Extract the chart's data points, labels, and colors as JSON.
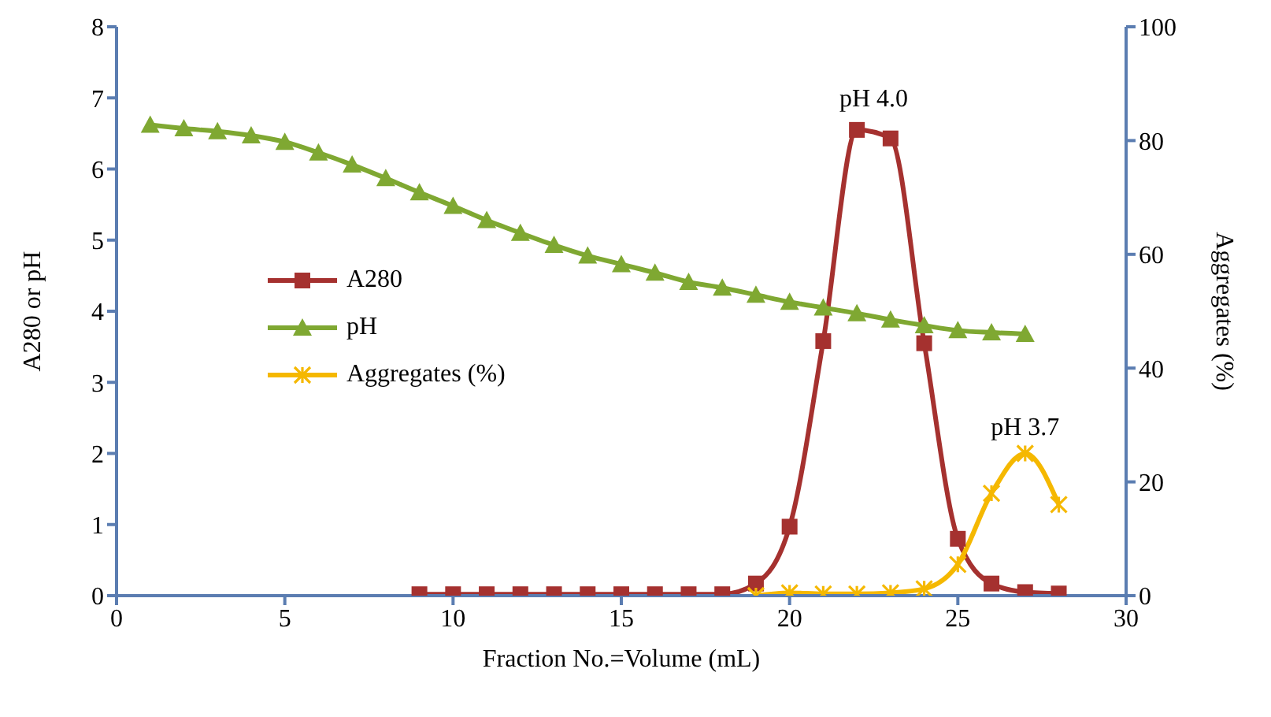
{
  "chart_data": {
    "type": "line",
    "xlabel": "Fraction No.=Volume (mL)",
    "ylabel": "A280 or  pH",
    "y2label": "Aggregates  (%)",
    "xlim": [
      0,
      30
    ],
    "xticks": [
      0,
      5,
      10,
      15,
      20,
      25,
      30
    ],
    "ylim": [
      0,
      8
    ],
    "yticks": [
      0,
      1,
      2,
      3,
      4,
      5,
      6,
      7,
      8
    ],
    "y2lim": [
      0,
      100
    ],
    "y2ticks": [
      0,
      20,
      40,
      60,
      80,
      100
    ],
    "grid": false,
    "legend": "left",
    "line_style": "solid",
    "series": [
      {
        "name": "A280",
        "color": "#a5312f",
        "marker": "square",
        "x": [
          9,
          10,
          11,
          12,
          13,
          14,
          15,
          16,
          17,
          18,
          19,
          20,
          21,
          22,
          23,
          24,
          25,
          26,
          27,
          28
        ],
        "values": [
          0.02,
          0.02,
          0.02,
          0.02,
          0.02,
          0.02,
          0.02,
          0.02,
          0.02,
          0.02,
          0.17,
          0.97,
          3.58,
          6.55,
          6.43,
          3.55,
          0.8,
          0.17,
          0.05,
          0.03
        ]
      },
      {
        "name": "pH",
        "color": "#7fa832",
        "marker": "triangle",
        "x": [
          1,
          2,
          3,
          4,
          5,
          6,
          7,
          8,
          9,
          10,
          11,
          12,
          13,
          14,
          15,
          16,
          17,
          18,
          19,
          20,
          21,
          22,
          23,
          24,
          25,
          26,
          27
        ],
        "values": [
          6.62,
          6.57,
          6.53,
          6.47,
          6.38,
          6.23,
          6.06,
          5.87,
          5.67,
          5.48,
          5.28,
          5.1,
          4.93,
          4.78,
          4.66,
          4.54,
          4.41,
          4.33,
          4.23,
          4.13,
          4.05,
          3.97,
          3.88,
          3.8,
          3.73,
          3.7,
          3.68
        ]
      },
      {
        "name": "Aggregates (%)",
        "color": "#f5b800",
        "marker": "cross",
        "axis": "y2",
        "x": [
          19,
          20,
          21,
          22,
          23,
          24,
          25,
          26,
          27,
          28
        ],
        "values": [
          0,
          0.5,
          0.3,
          0.3,
          0.5,
          1.2,
          5.5,
          18,
          25,
          16
        ]
      }
    ],
    "annotations": [
      {
        "text": "pH 4.0",
        "x": 22.5,
        "y": 6.62
      },
      {
        "text": "pH 3.7",
        "x": 27,
        "y": 2.0
      }
    ]
  }
}
